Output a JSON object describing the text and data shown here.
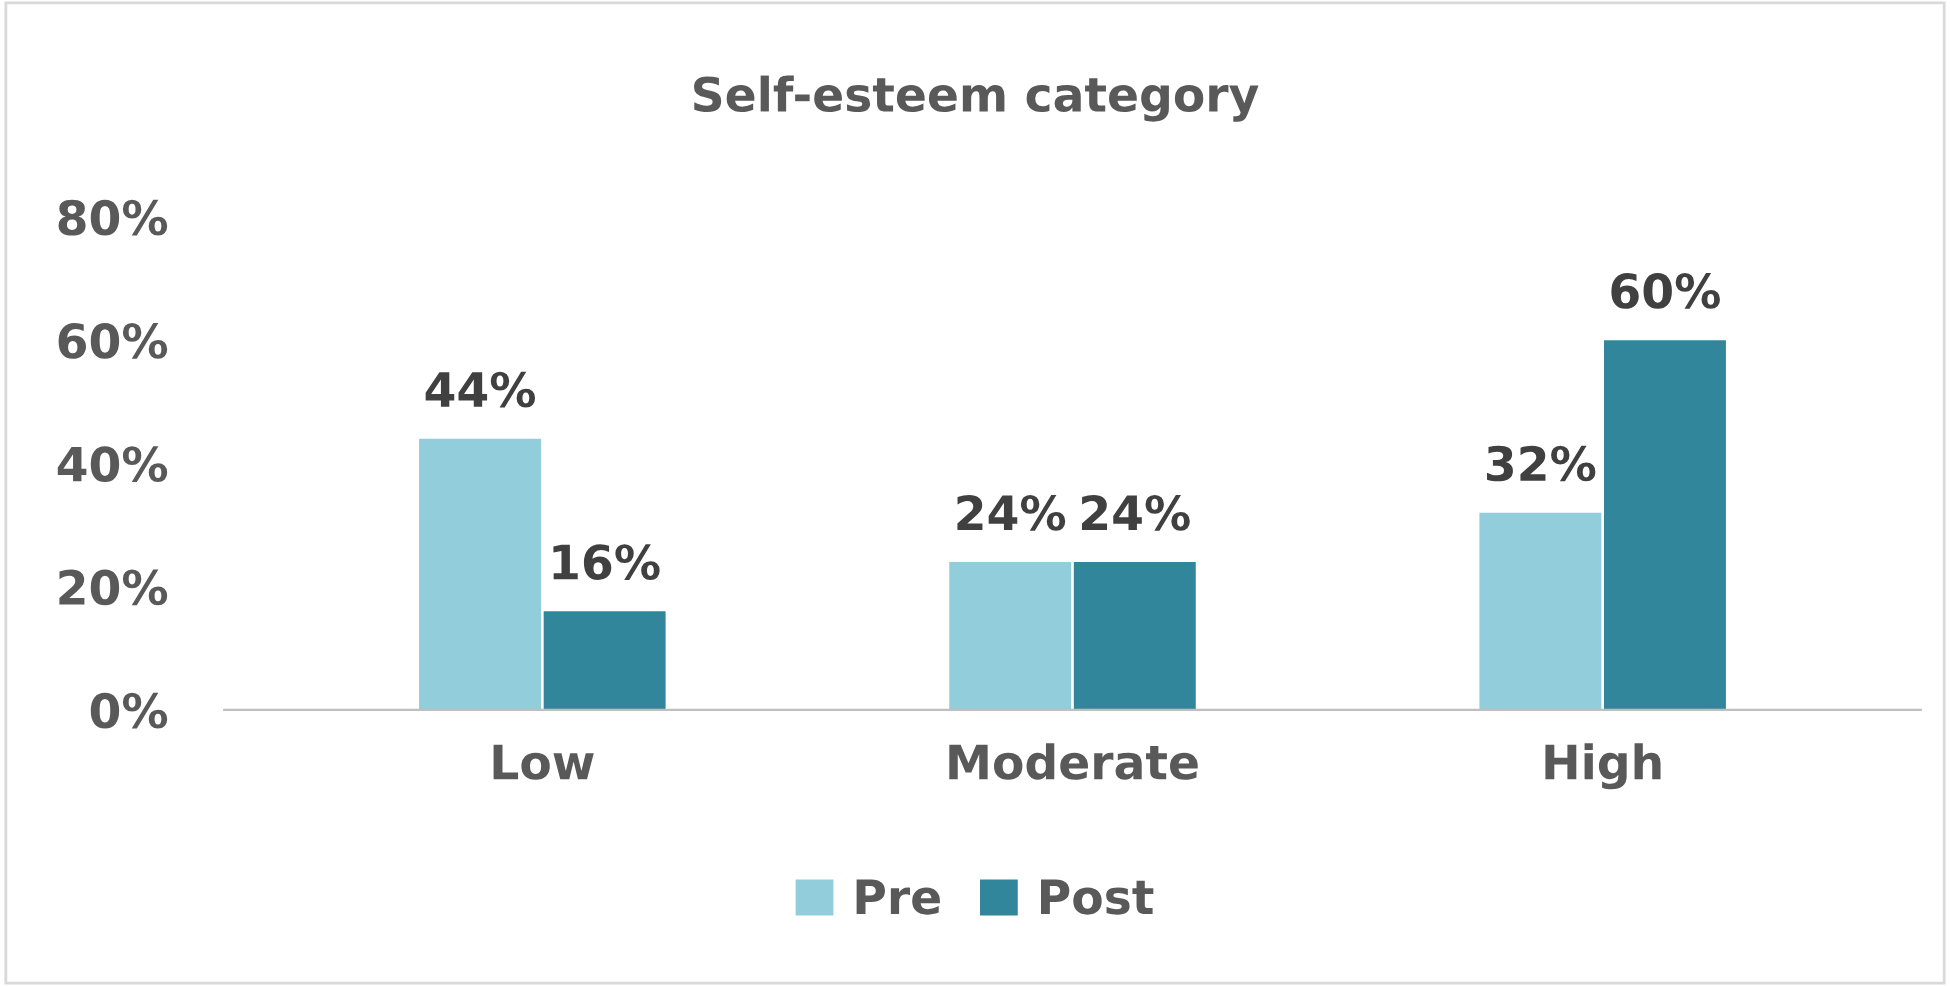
{
  "chart_data": {
    "type": "bar",
    "title": "Self-esteem category",
    "categories": [
      "Low",
      "Moderate",
      "High"
    ],
    "series": [
      {
        "name": "Pre",
        "color": "#92cddc",
        "values": [
          44,
          24,
          32
        ],
        "value_labels": [
          "44%",
          "24%",
          "32%"
        ]
      },
      {
        "name": "Post",
        "color": "#31869b",
        "values": [
          16,
          24,
          60
        ],
        "value_labels": [
          "16%",
          "24%",
          "60%"
        ]
      }
    ],
    "ylim": [
      0,
      80
    ],
    "yticks": [
      {
        "value": 0,
        "label": "0%"
      },
      {
        "value": 20,
        "label": "20%"
      },
      {
        "value": 40,
        "label": "40%"
      },
      {
        "value": 60,
        "label": "60%"
      },
      {
        "value": 80,
        "label": "80%"
      }
    ],
    "grid": false,
    "legend": "bottom"
  }
}
